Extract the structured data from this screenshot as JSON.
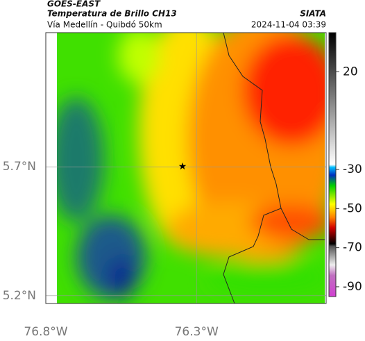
{
  "header": {
    "title": "GOES-EAST",
    "subtitle": "Temperatura de Brillo CH13",
    "route": "Vía Medellín - Quibdó 50km",
    "source": "SIATA",
    "timestamp": "2024-11-04 03:39"
  },
  "map": {
    "xlim": [
      -76.8,
      -75.87
    ],
    "ylim": [
      5.17,
      6.22
    ],
    "xticks": [
      {
        "value": -76.8,
        "label": "76.8°W"
      },
      {
        "value": -76.3,
        "label": "76.3°W"
      }
    ],
    "yticks": [
      {
        "value": 5.2,
        "label": "5.2°N"
      },
      {
        "value": 5.7,
        "label": "5.7°N"
      }
    ],
    "grid": true
  },
  "colorbar": {
    "lim": [
      -95,
      40
    ],
    "ticks": [
      20,
      -30,
      -50,
      -70,
      -90
    ]
  }
}
